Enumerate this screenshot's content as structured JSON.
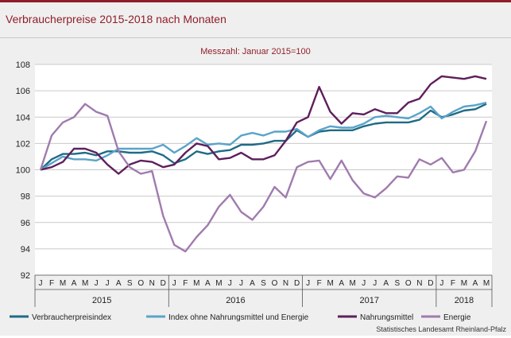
{
  "header": {
    "title": "Verbraucherpreise 2015-2018 nach Monaten",
    "accent_color": "#8f1e2a"
  },
  "footer": {
    "source": "Statistisches Landesamt Rheinland-Pfalz"
  },
  "chart_data": {
    "type": "line",
    "title": "Messzahl: Januar 2015=100",
    "xlabel": "",
    "ylabel": "",
    "ylim": [
      92,
      108
    ],
    "yticks": [
      92,
      94,
      96,
      98,
      100,
      102,
      104,
      106,
      108
    ],
    "grid": true,
    "legend_position": "bottom",
    "month_labels": [
      "J",
      "F",
      "M",
      "A",
      "M",
      "J",
      "J",
      "A",
      "S",
      "O",
      "N",
      "D",
      "J",
      "F",
      "M",
      "A",
      "M",
      "J",
      "J",
      "A",
      "S",
      "O",
      "N",
      "D",
      "J",
      "F",
      "M",
      "A",
      "M",
      "J",
      "J",
      "A",
      "S",
      "O",
      "N",
      "D",
      "J",
      "F",
      "M",
      "A",
      "M"
    ],
    "years": [
      {
        "label": "2015",
        "start": 0,
        "end": 11
      },
      {
        "label": "2016",
        "start": 12,
        "end": 23
      },
      {
        "label": "2017",
        "start": 24,
        "end": 35
      },
      {
        "label": "2018",
        "start": 36,
        "end": 40
      }
    ],
    "series": [
      {
        "name": "Verbraucherpreisindex",
        "color": "#1f6b86",
        "values": [
          100.0,
          100.8,
          101.2,
          101.2,
          101.3,
          101.1,
          101.4,
          101.4,
          101.3,
          101.3,
          101.4,
          101.1,
          100.5,
          100.8,
          101.4,
          101.2,
          101.4,
          101.5,
          101.9,
          101.9,
          102.0,
          102.2,
          102.2,
          103.0,
          102.5,
          102.9,
          103.0,
          103.0,
          103.0,
          103.3,
          103.5,
          103.6,
          103.6,
          103.6,
          103.8,
          104.5,
          104.0,
          104.2,
          104.5,
          104.6,
          105.0
        ]
      },
      {
        "name": "Index ohne Nahrungsmittel und Energie",
        "color": "#5ba3c9",
        "values": [
          100.0,
          100.5,
          101.0,
          100.8,
          100.8,
          100.7,
          101.1,
          101.6,
          101.6,
          101.6,
          101.6,
          101.9,
          101.3,
          101.8,
          102.4,
          101.9,
          102.0,
          101.9,
          102.6,
          102.8,
          102.6,
          102.9,
          102.9,
          103.1,
          102.5,
          103.0,
          103.3,
          103.2,
          103.2,
          103.5,
          104.0,
          104.1,
          104.0,
          103.9,
          104.3,
          104.8,
          103.9,
          104.4,
          104.8,
          104.9,
          105.1
        ]
      },
      {
        "name": "Nahrungsmittel",
        "color": "#5e1f5c",
        "values": [
          100.0,
          100.2,
          100.6,
          101.6,
          101.6,
          101.3,
          100.4,
          99.7,
          100.4,
          100.7,
          100.6,
          100.2,
          100.4,
          101.3,
          102.0,
          101.8,
          100.8,
          100.9,
          101.3,
          100.8,
          100.8,
          101.1,
          102.2,
          103.6,
          104.0,
          106.3,
          104.4,
          103.5,
          104.3,
          104.2,
          104.6,
          104.3,
          104.3,
          105.1,
          105.4,
          106.5,
          107.1,
          107.0,
          106.9,
          107.1,
          106.9
        ]
      },
      {
        "name": "Energie",
        "color": "#a07bae",
        "values": [
          100.0,
          102.6,
          103.6,
          104.0,
          105.0,
          104.4,
          104.1,
          101.4,
          100.2,
          99.7,
          99.9,
          96.5,
          94.3,
          93.8,
          94.9,
          95.8,
          97.2,
          98.1,
          96.8,
          96.2,
          97.2,
          98.7,
          97.9,
          100.2,
          100.6,
          100.7,
          99.3,
          100.7,
          99.2,
          98.2,
          97.9,
          98.6,
          99.5,
          99.4,
          100.8,
          100.4,
          100.9,
          99.8,
          100.0,
          101.4,
          103.7
        ]
      }
    ]
  }
}
